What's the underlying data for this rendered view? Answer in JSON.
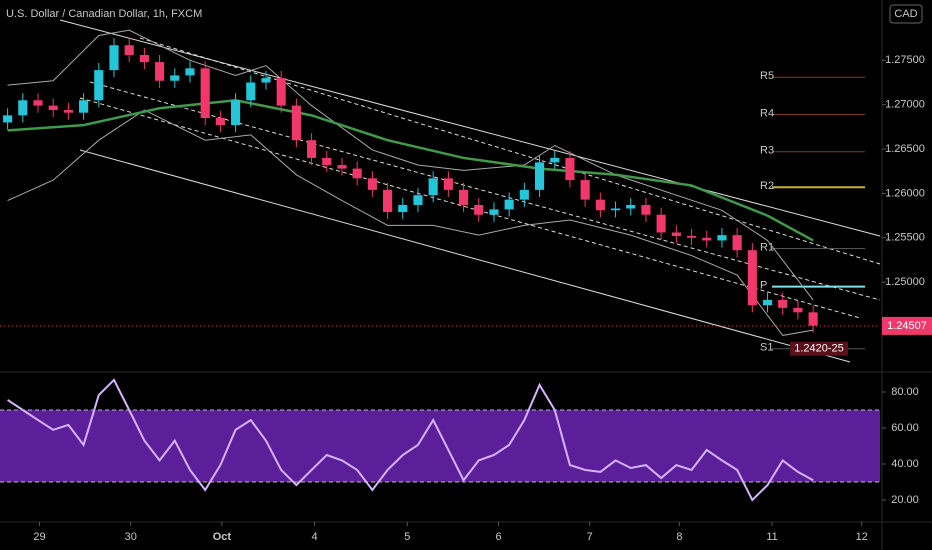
{
  "chart_data": [
    {
      "type": "candlestick",
      "title": "U.S. Dollar / Canadian Dollar, 1h, FXCM",
      "currency": "CAD",
      "up_color": "#26c6da",
      "down_color": "#f0386b",
      "open": [
        1.268,
        1.2688,
        1.2705,
        1.2699,
        1.2694,
        1.2691,
        1.2705,
        1.2739,
        1.2767,
        1.2756,
        1.2748,
        1.2727,
        1.2733,
        1.2741,
        1.2685,
        1.2677,
        1.2705,
        1.2725,
        1.273,
        1.2699,
        1.266,
        1.264,
        1.2632,
        1.2628,
        1.2617,
        1.2604,
        1.2579,
        1.2587,
        1.2598,
        1.2617,
        1.2604,
        1.2587,
        1.2576,
        1.2582,
        1.2593,
        1.2604,
        1.2635,
        1.264,
        1.2615,
        1.2593,
        1.2581,
        1.2583,
        1.2587,
        1.2576,
        1.2556,
        1.2552,
        1.255,
        1.2547,
        1.2553,
        1.2536,
        1.2474,
        1.248,
        1.2471,
        1.2466
      ],
      "high": [
        1.2696,
        1.2713,
        1.2713,
        1.2707,
        1.2702,
        1.2713,
        1.2747,
        1.2775,
        1.2775,
        1.2764,
        1.2756,
        1.2741,
        1.2749,
        1.2749,
        1.2693,
        1.2713,
        1.2733,
        1.2738,
        1.2738,
        1.2707,
        1.2668,
        1.2648,
        1.264,
        1.2636,
        1.2625,
        1.2612,
        1.2595,
        1.2606,
        1.2625,
        1.2625,
        1.2612,
        1.2595,
        1.259,
        1.2601,
        1.2612,
        1.2643,
        1.2648,
        1.2648,
        1.2623,
        1.2601,
        1.2591,
        1.2595,
        1.2595,
        1.2584,
        1.2564,
        1.256,
        1.2558,
        1.2561,
        1.2561,
        1.2544,
        1.2488,
        1.2488,
        1.2479,
        1.2474
      ],
      "low": [
        1.2672,
        1.268,
        1.2691,
        1.2686,
        1.2683,
        1.2683,
        1.2697,
        1.2731,
        1.2748,
        1.274,
        1.2719,
        1.2719,
        1.2725,
        1.2677,
        1.2669,
        1.2669,
        1.2697,
        1.2717,
        1.2691,
        1.2652,
        1.2632,
        1.2624,
        1.262,
        1.2609,
        1.2596,
        1.2571,
        1.2571,
        1.2579,
        1.259,
        1.2596,
        1.2579,
        1.2568,
        1.2568,
        1.2574,
        1.2585,
        1.2596,
        1.2627,
        1.2607,
        1.2585,
        1.2573,
        1.2573,
        1.2575,
        1.2568,
        1.2548,
        1.2544,
        1.2542,
        1.2539,
        1.2539,
        1.2528,
        1.2466,
        1.2466,
        1.2463,
        1.2458,
        1.2443
      ],
      "close": [
        1.2688,
        1.2705,
        1.2699,
        1.2694,
        1.2691,
        1.2705,
        1.2739,
        1.2767,
        1.2756,
        1.2748,
        1.2727,
        1.2733,
        1.2741,
        1.2685,
        1.2677,
        1.2705,
        1.2725,
        1.273,
        1.2699,
        1.266,
        1.264,
        1.2632,
        1.2628,
        1.2617,
        1.2604,
        1.2579,
        1.2587,
        1.2598,
        1.2617,
        1.2604,
        1.2587,
        1.2576,
        1.2582,
        1.2593,
        1.2604,
        1.2635,
        1.264,
        1.2615,
        1.2593,
        1.2581,
        1.2583,
        1.2587,
        1.2576,
        1.2556,
        1.2552,
        1.255,
        1.2547,
        1.2553,
        1.2536,
        1.2474,
        1.248,
        1.2471,
        1.2466,
        1.2451
      ],
      "series": [
        {
          "color": "#aaaaaa",
          "x": [
            0,
            3,
            6,
            8,
            12,
            15,
            17,
            20,
            24,
            27,
            30,
            34,
            36,
            40,
            44,
            47,
            50,
            53
          ],
          "values": [
            1.2722,
            1.2727,
            1.2778,
            1.2784,
            1.275,
            1.2733,
            1.2744,
            1.2699,
            1.2649,
            1.2632,
            1.2626,
            1.2632,
            1.2654,
            1.2621,
            1.2598,
            1.2581,
            1.2547,
            1.248
          ]
        },
        {
          "color": "#aaaaaa",
          "x": [
            0,
            3,
            6,
            9,
            13,
            16,
            19,
            22,
            25,
            28,
            31,
            34,
            37,
            41,
            45,
            48,
            51,
            53
          ],
          "values": [
            1.2592,
            1.2615,
            1.266,
            1.2694,
            1.266,
            1.2666,
            1.2621,
            1.2592,
            1.2564,
            1.2564,
            1.2553,
            1.2564,
            1.257,
            1.2553,
            1.253,
            1.2508,
            1.244,
            1.2446
          ]
        },
        {
          "color": "#3f9a4a",
          "x": [
            0,
            5,
            10,
            15,
            20,
            25,
            30,
            35,
            40,
            45,
            50,
            53
          ],
          "values": [
            1.2671,
            1.2677,
            1.2696,
            1.2705,
            1.2688,
            1.266,
            1.264,
            1.2628,
            1.2621,
            1.2609,
            1.2575,
            1.2547
          ]
        }
      ],
      "levels": [
        {
          "name": "R5",
          "value": 1.2731,
          "color": "#7a3a2a"
        },
        {
          "name": "R4",
          "value": 1.2689,
          "color": "#7a3a2a"
        },
        {
          "name": "R3",
          "value": 1.2647,
          "color": "#7a3a2a"
        },
        {
          "name": "R2",
          "value": 1.2607,
          "color": "#c8b038"
        },
        {
          "name": "R1",
          "value": 1.2538,
          "color": "#555555"
        },
        {
          "name": "P",
          "value": 1.2495,
          "color": "#7fe0f0"
        },
        {
          "name": "S1",
          "value": 1.2425,
          "color": "#555555"
        }
      ],
      "last_price": {
        "value": 1.24507,
        "label": "1.24507"
      },
      "annotations": [
        "1.2420-25"
      ],
      "ylim": [
        1.2401,
        1.2818
      ],
      "yticks": [
        {
          "value": 1.25,
          "label": "1.25000"
        },
        {
          "value": 1.255,
          "label": "1.25500"
        },
        {
          "value": 1.26,
          "label": "1.26000"
        },
        {
          "value": 1.265,
          "label": "1.26500"
        },
        {
          "value": 1.27,
          "label": "1.27000"
        },
        {
          "value": 1.275,
          "label": "1.27500"
        }
      ],
      "xlim": [
        0,
        57.9
      ],
      "xticks": [
        {
          "value": 2.6,
          "label": "29"
        },
        {
          "value": 8.6,
          "label": "30"
        },
        {
          "value": 14.6,
          "label": "Oct"
        },
        {
          "value": 20.7,
          "label": "4"
        },
        {
          "value": 26.8,
          "label": "5"
        },
        {
          "value": 32.8,
          "label": "6"
        },
        {
          "value": 38.8,
          "label": "7"
        },
        {
          "value": 44.7,
          "label": "8"
        },
        {
          "value": 50.8,
          "label": "11"
        },
        {
          "value": 56.7,
          "label": "12"
        }
      ]
    },
    {
      "type": "line",
      "color": "#d7b4ff",
      "values": [
        75.6,
        70,
        64.4,
        59,
        61.7,
        50.6,
        78.3,
        86.7,
        70,
        53,
        42,
        53,
        36.7,
        25.6,
        39.4,
        59,
        64.4,
        53,
        36.7,
        28.3,
        36.7,
        45,
        42,
        36.7,
        25.6,
        36.7,
        45,
        50.6,
        64.4,
        47.8,
        31,
        42,
        45,
        50.6,
        64.4,
        83.9,
        70,
        39.4,
        36.7,
        35.6,
        42,
        37.8,
        39.4,
        32.2,
        39.4,
        36.7,
        47.8,
        42,
        36.7,
        20,
        28.3,
        42,
        35.6,
        31
      ],
      "band": [
        30,
        70
      ],
      "band_color": "#5b1f9a",
      "ylim": [
        8.9,
        91.1
      ],
      "yticks": [
        {
          "value": 20,
          "label": "20.00"
        },
        {
          "value": 40,
          "label": "40.00"
        },
        {
          "value": 60,
          "label": "60.00"
        },
        {
          "value": 80,
          "label": "80.00"
        }
      ]
    }
  ]
}
